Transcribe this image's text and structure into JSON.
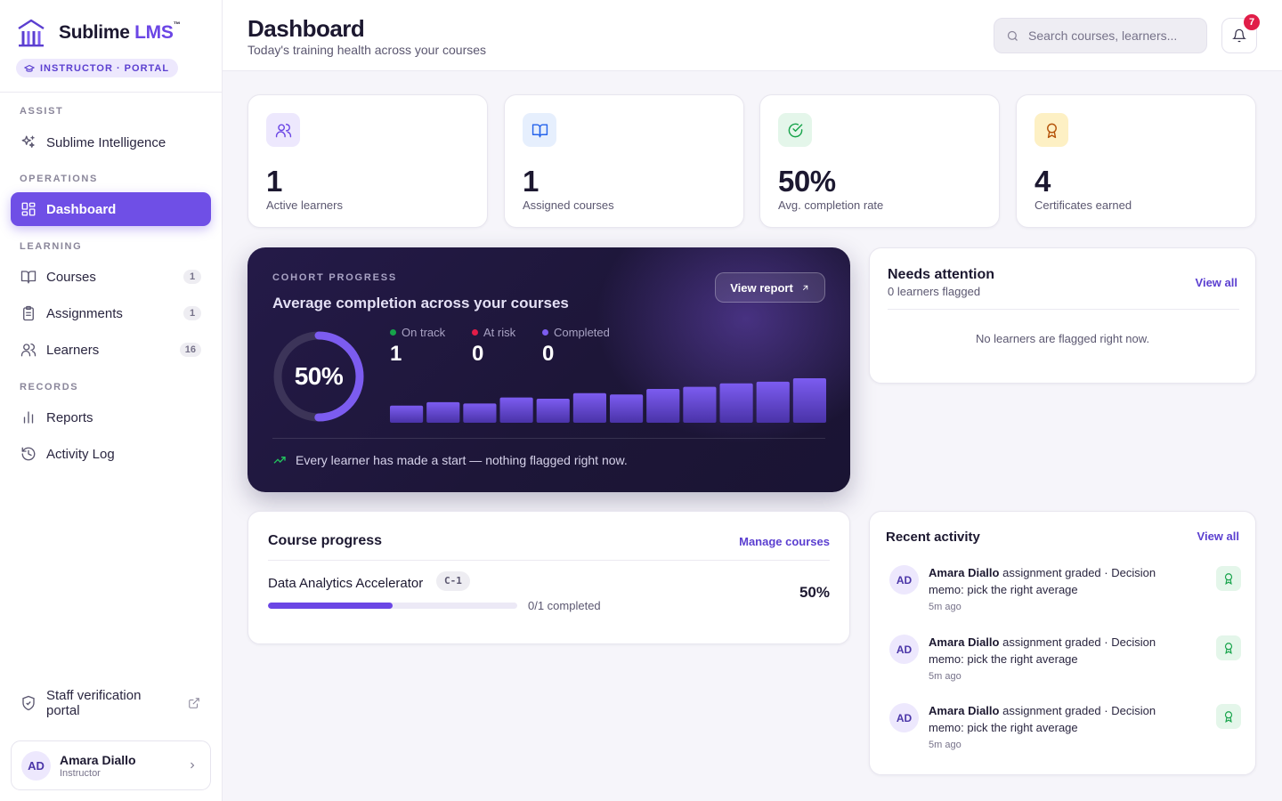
{
  "brand": {
    "name": "Sublime",
    "name_accent": "LMS",
    "tm": "™",
    "portal_badge": "INSTRUCTOR · PORTAL"
  },
  "sidebar": {
    "sections": [
      "ASSIST",
      "OPERATIONS",
      "LEARNING",
      "RECORDS"
    ],
    "items": [
      {
        "label": "Sublime Intelligence",
        "icon": "sparkles-icon"
      },
      {
        "label": "Dashboard",
        "icon": "grid-icon",
        "active": true
      },
      {
        "label": "Courses",
        "icon": "book-icon",
        "count": "1"
      },
      {
        "label": "Assignments",
        "icon": "clipboard-icon",
        "count": "1"
      },
      {
        "label": "Learners",
        "icon": "users-icon",
        "count": "16"
      },
      {
        "label": "Reports",
        "icon": "bar-chart-icon"
      },
      {
        "label": "Activity Log",
        "icon": "history-icon"
      }
    ],
    "staff_portal": "Staff verification portal",
    "user": {
      "initials": "AD",
      "name": "Amara Diallo",
      "role": "Instructor"
    }
  },
  "header": {
    "title": "Dashboard",
    "subtitle": "Today's training health across your courses",
    "search_placeholder": "Search courses, learners...",
    "notification_count": "7"
  },
  "stats": [
    {
      "value": "1",
      "label": "Active learners",
      "icon": "users-icon",
      "color": "#6b46e5",
      "bg": "#ede8fd"
    },
    {
      "value": "1",
      "label": "Assigned courses",
      "icon": "book-icon",
      "color": "#2563eb",
      "bg": "#e6effd"
    },
    {
      "value": "50%",
      "label": "Avg. completion rate",
      "icon": "check-circle-icon",
      "color": "#16a34a",
      "bg": "#e4f6ea"
    },
    {
      "value": "4",
      "label": "Certificates earned",
      "icon": "award-icon",
      "color": "#b45309",
      "bg": "#fdf0c4"
    }
  ],
  "cohort": {
    "label": "COHORT PROGRESS",
    "title": "Average completion across your courses",
    "button": "View report",
    "completion_pct": "50%",
    "completion_value": 0.5,
    "legend": [
      {
        "label": "On track",
        "value": "1",
        "color": "#16a34a"
      },
      {
        "label": "At risk",
        "value": "0",
        "color": "#e11d48"
      },
      {
        "label": "Completed",
        "value": "0",
        "color": "#7c5cf0"
      }
    ],
    "trend_bars": [
      0.36,
      0.44,
      0.41,
      0.55,
      0.52,
      0.65,
      0.62,
      0.75,
      0.8,
      0.88,
      0.92,
      1.0
    ],
    "note": "Every learner has made a start — nothing flagged right now."
  },
  "needs_attention": {
    "title": "Needs attention",
    "subtitle": "0 learners flagged",
    "link": "View all",
    "empty": "No learners are flagged right now."
  },
  "course_progress": {
    "title": "Course progress",
    "link": "Manage courses",
    "courses": [
      {
        "name": "Data Analytics Accelerator",
        "code": "C-1",
        "progress_label": "0/1 completed",
        "pct": "50%",
        "progress": 0.5
      }
    ]
  },
  "recent_activity": {
    "title": "Recent activity",
    "link": "View all",
    "items": [
      {
        "initials": "AD",
        "actor": "Amara Diallo",
        "text": " assignment graded · Decision memo: pick the right average",
        "time": "5m ago"
      },
      {
        "initials": "AD",
        "actor": "Amara Diallo",
        "text": " assignment graded · Decision memo: pick the right average",
        "time": "5m ago"
      },
      {
        "initials": "AD",
        "actor": "Amara Diallo",
        "text": " assignment graded · Decision memo: pick the right average",
        "time": "5m ago"
      }
    ]
  }
}
